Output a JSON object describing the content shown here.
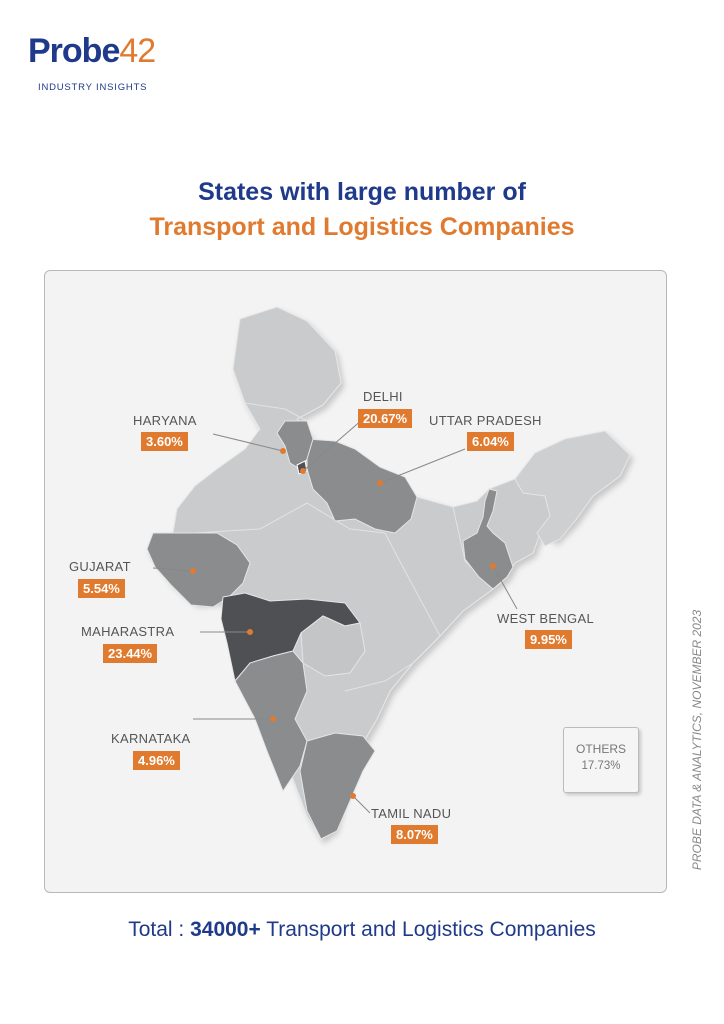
{
  "brand": {
    "name_part1": "Probe",
    "name_part2": "42",
    "tagline": "INDUSTRY INSIGHTS"
  },
  "title": {
    "line1": "States with large number of",
    "line2": "Transport and Logistics Companies"
  },
  "states": [
    {
      "id": "haryana",
      "name": "HARYANA",
      "share": "3.60%"
    },
    {
      "id": "delhi",
      "name": "DELHI",
      "share": "20.67%"
    },
    {
      "id": "uttar-pradesh",
      "name": "UTTAR PRADESH",
      "share": "6.04%"
    },
    {
      "id": "gujarat",
      "name": "GUJARAT",
      "share": "5.54%"
    },
    {
      "id": "west-bengal",
      "name": "WEST BENGAL",
      "share": "9.95%"
    },
    {
      "id": "maharastra",
      "name": "MAHARASTRA",
      "share": "23.44%"
    },
    {
      "id": "karnataka",
      "name": "KARNATAKA",
      "share": "4.96%"
    },
    {
      "id": "tamil-nadu",
      "name": "TAMIL NADU",
      "share": "8.07%"
    }
  ],
  "others": {
    "label": "OTHERS",
    "share": "17.73%"
  },
  "source": "PROBE DATA & ANALYTICS, NOVEMBER 2023",
  "total": {
    "prefix": "Total : ",
    "value": "34000+",
    "suffix": " Transport and Logistics Companies"
  },
  "colors": {
    "accent": "#e07a2f",
    "brand": "#1f3a8a",
    "map_base": "#c9cbcc",
    "map_highlight": "#8a8c8e",
    "map_top": "#4f5053"
  }
}
